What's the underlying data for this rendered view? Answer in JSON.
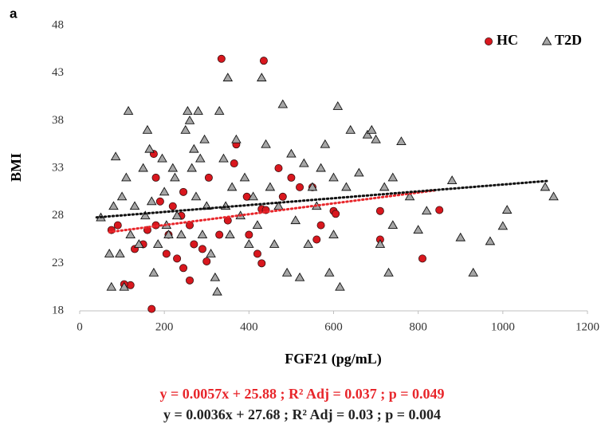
{
  "chart_data": {
    "type": "scatter",
    "panel_label": "a",
    "xlabel": "FGF21 (pg/mL)",
    "ylabel": "BMI",
    "xlim": [
      0,
      1200
    ],
    "xticks": [
      0,
      200,
      400,
      600,
      800,
      1000,
      1200
    ],
    "ylim": [
      18,
      48
    ],
    "yticks": [
      18,
      23,
      28,
      33,
      38,
      43,
      48
    ],
    "legend": "top-right",
    "annotations": [
      {
        "text": "y = 0.0057x + 25.88 ; R² Adj = 0.037 ; p = 0.049",
        "color": "#e8262b"
      },
      {
        "text": "y = 0.0036x + 27.68 ; R² Adj = 0.03   ; p = 0.004",
        "color": "#222222"
      }
    ],
    "series": [
      {
        "name": "HC",
        "color": "#d9171e",
        "marker": "circle",
        "trend": {
          "slope": 0.0057,
          "intercept": 25.88,
          "x": [
            70,
            840
          ],
          "color": "#e8262b"
        },
        "x": [
          335,
          435,
          175,
          370,
          365,
          470,
          180,
          305,
          500,
          520,
          480,
          395,
          550,
          600,
          605,
          710,
          850,
          710,
          810,
          560,
          570,
          430,
          440,
          420,
          430,
          300,
          260,
          170,
          120,
          105,
          190,
          220,
          245,
          260,
          210,
          150,
          130,
          90,
          75,
          180,
          270,
          230,
          245,
          205,
          160,
          330,
          290,
          240,
          350,
          400
        ],
        "values": [
          44.5,
          44.3,
          34.5,
          35.5,
          33.5,
          33,
          32,
          32,
          32,
          31,
          30,
          30,
          31,
          28.5,
          28.2,
          28.5,
          28.6,
          25.5,
          23.5,
          25.5,
          27,
          28.7,
          28.6,
          24,
          23,
          23.2,
          21.2,
          18.2,
          20.7,
          20.8,
          29.5,
          29,
          30.5,
          27,
          26,
          25,
          24.5,
          27,
          26.5,
          27,
          25,
          23.5,
          22.5,
          24,
          26.5,
          26,
          24.5,
          28,
          27.5,
          26
        ]
      },
      {
        "name": "T2D",
        "color": "#a6a6a6",
        "marker": "triangle",
        "trend": {
          "slope": 0.0036,
          "intercept": 27.68,
          "x": [
            40,
            1110
          ],
          "color": "#111111"
        },
        "x": [
          50,
          70,
          75,
          80,
          85,
          95,
          100,
          105,
          110,
          115,
          120,
          130,
          140,
          150,
          155,
          160,
          165,
          170,
          175,
          185,
          195,
          200,
          205,
          210,
          220,
          225,
          230,
          240,
          250,
          255,
          260,
          265,
          270,
          275,
          280,
          285,
          290,
          295,
          300,
          310,
          320,
          325,
          330,
          340,
          345,
          350,
          355,
          360,
          370,
          380,
          390,
          400,
          410,
          420,
          430,
          440,
          450,
          460,
          470,
          480,
          490,
          500,
          510,
          520,
          530,
          540,
          550,
          560,
          570,
          580,
          590,
          600,
          610,
          615,
          630,
          640,
          660,
          680,
          690,
          700,
          710,
          720,
          730,
          740,
          760,
          780,
          800,
          820,
          880,
          900,
          930,
          970,
          1000,
          1010,
          1100,
          1120,
          740,
          600
        ],
        "values": [
          27.8,
          24,
          20.5,
          29,
          34.2,
          24,
          30,
          20.5,
          32,
          39,
          26,
          29,
          25,
          33,
          28,
          37,
          35,
          29.5,
          22,
          25,
          34,
          30.5,
          27,
          26,
          33,
          32,
          28,
          26,
          37,
          39,
          38,
          33,
          35,
          30,
          39,
          34,
          26,
          36,
          29,
          24,
          21.5,
          20,
          39,
          34,
          29,
          42.5,
          26,
          31,
          36,
          28,
          32,
          25,
          30,
          27,
          42.5,
          35.5,
          31,
          25,
          29,
          39.7,
          22,
          34.5,
          27.5,
          21.5,
          33.5,
          25,
          31,
          29,
          33,
          35.5,
          22,
          32,
          39.5,
          20.5,
          31,
          37,
          32.5,
          36.5,
          37,
          36,
          25,
          31,
          22,
          27,
          35.8,
          30,
          26.5,
          28.5,
          31.7,
          25.7,
          22,
          25.3,
          26.9,
          28.6,
          31,
          30,
          32,
          26
        ]
      }
    ]
  }
}
